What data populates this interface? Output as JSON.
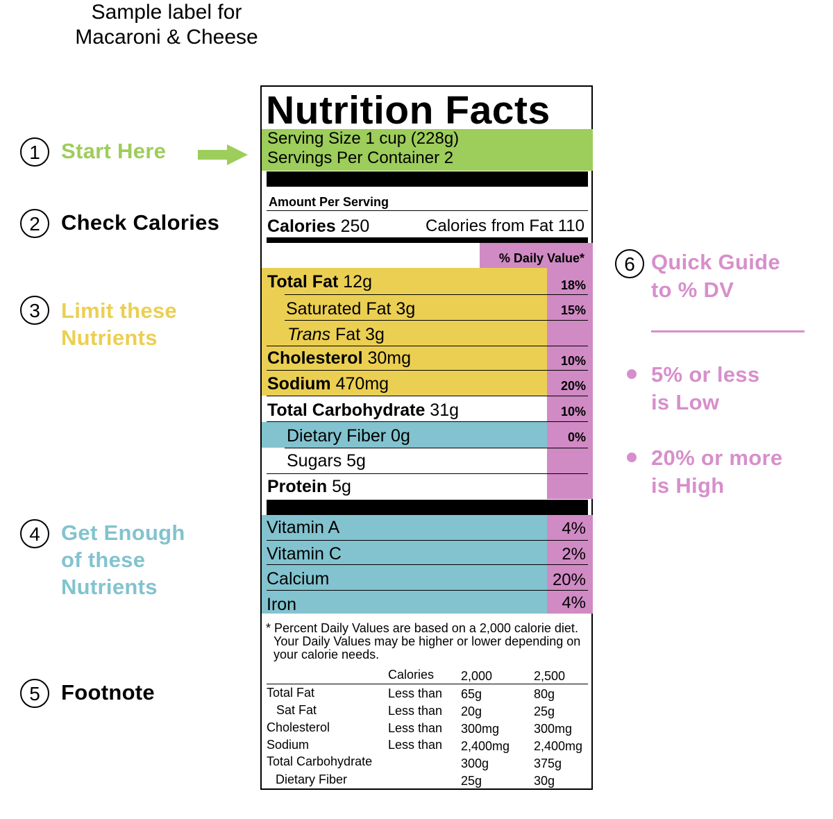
{
  "header": {
    "line1": "Sample label for",
    "line2": "Macaroni & Cheese"
  },
  "colors": {
    "green": "#9dcd5a",
    "yellow": "#ebcf52",
    "blue": "#82c3cf",
    "pink": "#d08ac4"
  },
  "steps": [
    {
      "number": "1",
      "label": "Start Here",
      "color": "#9dcd5a"
    },
    {
      "number": "2",
      "label": "Check Calories",
      "color": "#000000"
    },
    {
      "number": "3",
      "line1": "Limit these",
      "line2": "Nutrients",
      "color": "#ebcf52"
    },
    {
      "number": "4",
      "line1": "Get Enough",
      "line2": "of these",
      "line3": "Nutrients",
      "color": "#82c3cf"
    },
    {
      "number": "5",
      "label": "Footnote",
      "color": "#000000"
    },
    {
      "number": "6",
      "line1": "Quick Guide",
      "line2": "to % DV",
      "color": "#d78fcb"
    }
  ],
  "guide": {
    "bullet1_line1": "5% or less",
    "bullet1_line2": "is Low",
    "bullet2_line1": "20% or more",
    "bullet2_line2": "is High"
  },
  "label": {
    "title": "Nutrition Facts",
    "serving_size": "Serving Size 1 cup (228g)",
    "servings_per_container": "Servings Per Container 2",
    "amount_per_serving": "Amount Per Serving",
    "calories_label": "Calories",
    "calories_value": "250",
    "calories_from_fat": "Calories from Fat 110",
    "dv_header": "% Daily Value*",
    "nutrients": [
      {
        "name": "Total Fat",
        "amount": "12g",
        "dv": "18%"
      },
      {
        "name": "Saturated Fat 3g",
        "dv": "15%"
      },
      {
        "name": "Trans",
        "amount": "Fat 3g",
        "dv": ""
      },
      {
        "name": "Cholesterol",
        "amount": "30mg",
        "dv": "10%"
      },
      {
        "name": "Sodium",
        "amount": "470mg",
        "dv": "20%"
      },
      {
        "name": "Total Carbohydrate",
        "amount": "31g",
        "dv": "10%"
      },
      {
        "name": "Dietary Fiber 0g",
        "dv": "0%"
      },
      {
        "name": "Sugars 5g",
        "dv": ""
      },
      {
        "name": "Protein",
        "amount": "5g",
        "dv": ""
      }
    ],
    "vitamins": [
      {
        "name": "Vitamin A",
        "dv": "4%"
      },
      {
        "name": "Vitamin C",
        "dv": "2%"
      },
      {
        "name": "Calcium",
        "dv": "20%"
      },
      {
        "name": "Iron",
        "dv": "4%"
      }
    ],
    "footnote": {
      "line1": "* Percent Daily Values are based on a 2,000 calorie diet.",
      "line2": "Your Daily Values may be higher or lower depending on",
      "line3": "your calorie needs."
    },
    "table": {
      "header": [
        "",
        "Calories",
        "2,000",
        "2,500"
      ],
      "rows": [
        [
          "Total Fat",
          "Less than",
          "65g",
          "80g"
        ],
        [
          "Sat Fat",
          "Less than",
          "20g",
          "25g"
        ],
        [
          "Cholesterol",
          "Less than",
          "300mg",
          "300mg"
        ],
        [
          "Sodium",
          "Less than",
          "2,400mg",
          "2,400mg"
        ],
        [
          "Total Carbohydrate",
          "",
          "300g",
          "375g"
        ],
        [
          "Dietary Fiber",
          "",
          "25g",
          "30g"
        ]
      ]
    }
  }
}
